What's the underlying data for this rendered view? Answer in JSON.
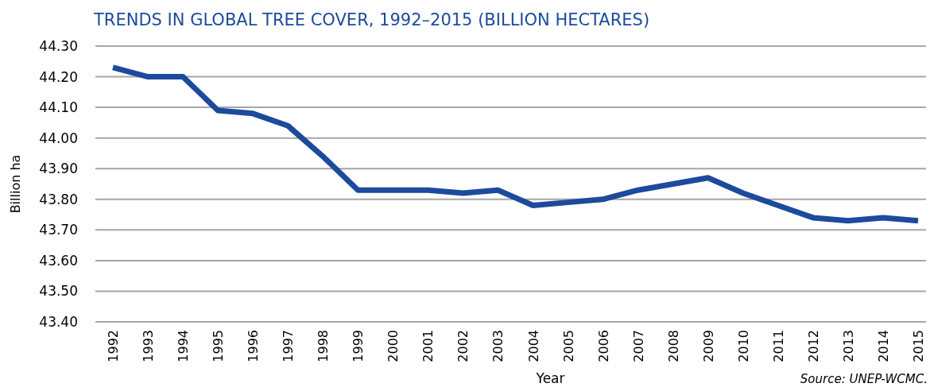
{
  "chart_data": {
    "type": "line",
    "title": "TRENDS IN GLOBAL TREE COVER, 1992–2015 (BILLION HECTARES)",
    "xlabel": "Year",
    "ylabel": "Billion ha",
    "categories": [
      "1992",
      "1993",
      "1994",
      "1995",
      "1996",
      "1997",
      "1998",
      "1999",
      "2000",
      "2001",
      "2002",
      "2003",
      "2004",
      "2005",
      "2006",
      "2007",
      "2008",
      "2009",
      "2010",
      "2011",
      "2012",
      "2013",
      "2014",
      "2015"
    ],
    "series": [
      {
        "color": "#1c4a9c",
        "values": [
          44.23,
          44.2,
          44.2,
          44.09,
          44.08,
          44.04,
          43.94,
          43.83,
          43.83,
          43.83,
          43.82,
          43.83,
          43.78,
          43.79,
          43.8,
          43.83,
          43.85,
          43.87,
          43.82,
          43.78,
          43.74,
          43.73,
          43.74,
          43.73
        ]
      }
    ],
    "ylim": [
      43.4,
      44.3
    ],
    "yticks": [
      {
        "value": 43.4,
        "label": "43.40"
      },
      {
        "value": 43.5,
        "label": "43.50"
      },
      {
        "value": 43.6,
        "label": "43.60"
      },
      {
        "value": 43.7,
        "label": "43.70"
      },
      {
        "value": 43.8,
        "label": "43.80"
      },
      {
        "value": 43.9,
        "label": "43.90"
      },
      {
        "value": 44.0,
        "label": "44.00"
      },
      {
        "value": 44.1,
        "label": "44.10"
      },
      {
        "value": 44.2,
        "label": "44.20"
      },
      {
        "value": 44.3,
        "label": "44.30"
      }
    ],
    "grid": "y",
    "marker": "none",
    "line_style": "solid",
    "annotations": [
      "Source: UNEP-WCMC."
    ]
  }
}
